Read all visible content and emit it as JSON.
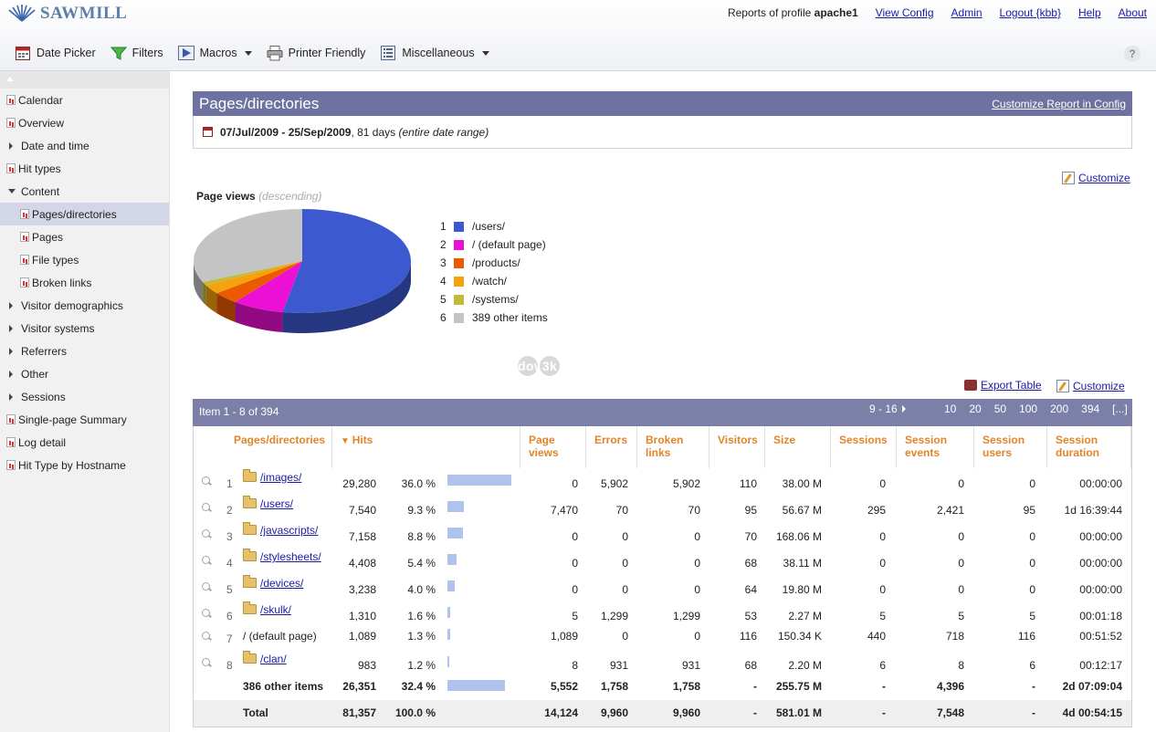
{
  "app": {
    "name": "SAWMILL"
  },
  "topnav": {
    "profile_prefix": "Reports of profile",
    "profile_name": "apache1",
    "links": [
      "View Config",
      "Admin",
      "Logout {kbb}",
      "Help",
      "About"
    ]
  },
  "toolbar": {
    "date_picker": "Date Picker",
    "filters": "Filters",
    "macros": "Macros",
    "printer": "Printer Friendly",
    "misc": "Miscellaneous",
    "help": "?"
  },
  "sidebar": {
    "items": [
      {
        "label": "Calendar",
        "type": "report",
        "level": 0
      },
      {
        "label": "Overview",
        "type": "report",
        "level": 0
      },
      {
        "label": "Date and time",
        "type": "group",
        "level": 0
      },
      {
        "label": "Hit types",
        "type": "report",
        "level": 0
      },
      {
        "label": "Content",
        "type": "open",
        "level": 0
      },
      {
        "label": "Pages/directories",
        "type": "report",
        "level": 1,
        "active": true
      },
      {
        "label": "Pages",
        "type": "report",
        "level": 1
      },
      {
        "label": "File types",
        "type": "report",
        "level": 1
      },
      {
        "label": "Broken links",
        "type": "report",
        "level": 1
      },
      {
        "label": "Visitor demographics",
        "type": "group",
        "level": 0
      },
      {
        "label": "Visitor systems",
        "type": "group",
        "level": 0
      },
      {
        "label": "Referrers",
        "type": "group",
        "level": 0
      },
      {
        "label": "Other",
        "type": "group",
        "level": 0
      },
      {
        "label": "Sessions",
        "type": "group",
        "level": 0
      },
      {
        "label": "Single-page Summary",
        "type": "report",
        "level": 0
      },
      {
        "label": "Log detail",
        "type": "report",
        "level": 0
      },
      {
        "label": "Hit Type by Hostname",
        "type": "report",
        "level": 0
      }
    ]
  },
  "report": {
    "title": "Pages/directories",
    "customize_config": "Customize Report in Config",
    "date_range": "07/Jul/2009 - 25/Sep/2009",
    "days": ", 81 days ",
    "range_note": "(entire date range)",
    "customize": "Customize"
  },
  "chart": {
    "title": "Page views",
    "sort_note": "(descending)",
    "legend": [
      {
        "num": "1",
        "label": "/users/",
        "color": "#3c59cf"
      },
      {
        "num": "2",
        "label": "/ (default page)",
        "color": "#ec10d4"
      },
      {
        "num": "3",
        "label": "/products/",
        "color": "#ec5a00"
      },
      {
        "num": "4",
        "label": "/watch/",
        "color": "#f5a20e"
      },
      {
        "num": "5",
        "label": "/systems/",
        "color": "#c3bb38"
      },
      {
        "num": "6",
        "label": "389 other items",
        "color": "#c4c4c4"
      }
    ]
  },
  "chart_data": {
    "type": "pie",
    "title": "Page views",
    "categories": [
      "/users/",
      "/ (default page)",
      "/products/",
      "/watch/",
      "/systems/",
      "389 other items"
    ],
    "values": [
      52.9,
      7.7,
      3.8,
      2.9,
      1.1,
      31.6
    ]
  },
  "watermark": {
    "text": "download",
    "badge": "3k"
  },
  "table": {
    "export": "Export Table",
    "customize": "Customize",
    "item_range": "Item 1 - 8 of 394",
    "next_page": "9 - 16",
    "page_sizes": [
      "10",
      "20",
      "50",
      "100",
      "200",
      "394",
      "[...]"
    ],
    "headers": [
      "Pages/directories",
      "Hits",
      "Page views",
      "Errors",
      "Broken links",
      "Visitors",
      "Size",
      "Sessions",
      "Session events",
      "Session users",
      "Session duration"
    ],
    "rows": [
      {
        "n": "1",
        "name": "/images/",
        "link": true,
        "hits": "29,280",
        "pct": "36.0 %",
        "share": 0.36,
        "pv": "0",
        "err": "5,902",
        "bl": "5,902",
        "vis": "110",
        "size": "38.00 M",
        "ses": "0",
        "sev": "0",
        "su": "0",
        "sd": "00:00:00"
      },
      {
        "n": "2",
        "name": "/users/",
        "link": true,
        "hits": "7,540",
        "pct": "9.3 %",
        "share": 0.093,
        "pv": "7,470",
        "err": "70",
        "bl": "70",
        "vis": "95",
        "size": "56.67 M",
        "ses": "295",
        "sev": "2,421",
        "su": "95",
        "sd": "1d 16:39:44"
      },
      {
        "n": "3",
        "name": "/javascripts/",
        "link": true,
        "hits": "7,158",
        "pct": "8.8 %",
        "share": 0.088,
        "pv": "0",
        "err": "0",
        "bl": "0",
        "vis": "70",
        "size": "168.06 M",
        "ses": "0",
        "sev": "0",
        "su": "0",
        "sd": "00:00:00"
      },
      {
        "n": "4",
        "name": "/stylesheets/",
        "link": true,
        "hits": "4,408",
        "pct": "5.4 %",
        "share": 0.054,
        "pv": "0",
        "err": "0",
        "bl": "0",
        "vis": "68",
        "size": "38.11 M",
        "ses": "0",
        "sev": "0",
        "su": "0",
        "sd": "00:00:00"
      },
      {
        "n": "5",
        "name": "/devices/",
        "link": true,
        "hits": "3,238",
        "pct": "4.0 %",
        "share": 0.04,
        "pv": "0",
        "err": "0",
        "bl": "0",
        "vis": "64",
        "size": "19.80 M",
        "ses": "0",
        "sev": "0",
        "su": "0",
        "sd": "00:00:00"
      },
      {
        "n": "6",
        "name": "/skulk/",
        "link": true,
        "hits": "1,310",
        "pct": "1.6 %",
        "share": 0.016,
        "pv": "5",
        "err": "1,299",
        "bl": "1,299",
        "vis": "53",
        "size": "2.27 M",
        "ses": "5",
        "sev": "5",
        "su": "5",
        "sd": "00:01:18"
      },
      {
        "n": "7",
        "name": "/ (default page)",
        "link": false,
        "hits": "1,089",
        "pct": "1.3 %",
        "share": 0.013,
        "pv": "1,089",
        "err": "0",
        "bl": "0",
        "vis": "116",
        "size": "150.34 K",
        "ses": "440",
        "sev": "718",
        "su": "116",
        "sd": "00:51:52"
      },
      {
        "n": "8",
        "name": "/clan/",
        "link": true,
        "hits": "983",
        "pct": "1.2 %",
        "share": 0.012,
        "pv": "8",
        "err": "931",
        "bl": "931",
        "vis": "68",
        "size": "2.20 M",
        "ses": "6",
        "sev": "8",
        "su": "6",
        "sd": "00:12:17"
      }
    ],
    "other": {
      "name": "386 other items",
      "hits": "26,351",
      "pct": "32.4 %",
      "share": 0.324,
      "pv": "5,552",
      "err": "1,758",
      "bl": "1,758",
      "vis": "-",
      "size": "255.75 M",
      "ses": "-",
      "sev": "4,396",
      "su": "-",
      "sd": "2d 07:09:04"
    },
    "total": {
      "name": "Total",
      "hits": "81,357",
      "pct": "100.0 %",
      "pv": "14,124",
      "err": "9,960",
      "bl": "9,960",
      "vis": "-",
      "size": "581.01 M",
      "ses": "-",
      "sev": "7,548",
      "su": "-",
      "sd": "4d 00:54:15"
    }
  }
}
